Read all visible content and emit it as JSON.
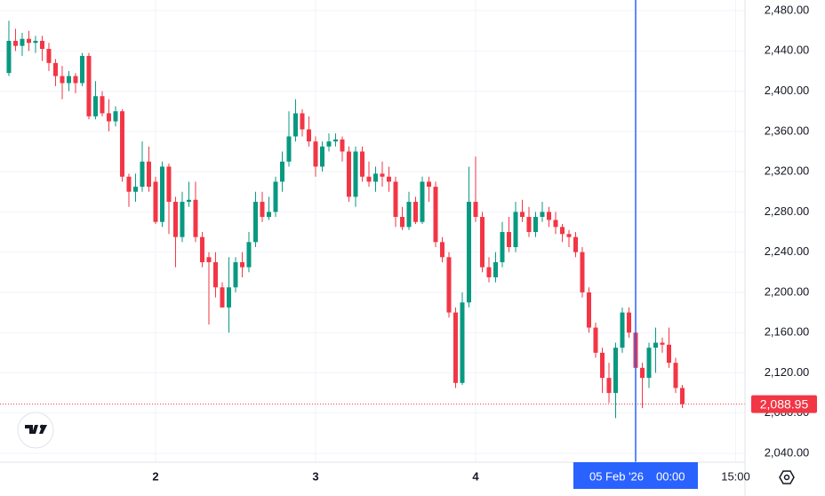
{
  "chart_data": {
    "type": "candlestick",
    "open": [
      2418,
      2450,
      2445,
      2452,
      2448,
      2450,
      2442,
      2428,
      2415,
      2408,
      2415,
      2408,
      2435,
      2375,
      2395,
      2378,
      2370,
      2380,
      2315,
      2300,
      2305,
      2330,
      2310,
      2270,
      2325,
      2290,
      2255,
      2290,
      2292,
      2255,
      2235,
      2230,
      2205,
      2185,
      2205,
      2230,
      2225,
      2250,
      2290,
      2275,
      2280,
      2310,
      2330,
      2355,
      2378,
      2362,
      2350,
      2325,
      2345,
      2350,
      2352,
      2340,
      2295,
      2340,
      2315,
      2310,
      2318,
      2315,
      2310,
      2275,
      2265,
      2290,
      2270,
      2310,
      2305,
      2250,
      2235,
      2180,
      2110,
      2190,
      2290,
      2275,
      2225,
      2215,
      2230,
      2260,
      2245,
      2280,
      2275,
      2260,
      2275,
      2280,
      2272,
      2265,
      2258,
      2255,
      2240,
      2200,
      2165,
      2140,
      2115,
      2100,
      2145,
      2180,
      2160,
      2125,
      2115,
      2145,
      2150,
      2148,
      2130,
      2105
    ],
    "high": [
      2470,
      2462,
      2458,
      2460,
      2455,
      2455,
      2448,
      2432,
      2425,
      2420,
      2418,
      2438,
      2438,
      2410,
      2400,
      2392,
      2385,
      2382,
      2318,
      2318,
      2350,
      2345,
      2315,
      2330,
      2328,
      2295,
      2300,
      2310,
      2310,
      2260,
      2240,
      2240,
      2210,
      2235,
      2235,
      2240,
      2260,
      2300,
      2300,
      2295,
      2315,
      2340,
      2380,
      2392,
      2382,
      2375,
      2355,
      2350,
      2358,
      2358,
      2355,
      2345,
      2345,
      2345,
      2330,
      2325,
      2330,
      2325,
      2315,
      2285,
      2300,
      2295,
      2315,
      2315,
      2310,
      2255,
      2240,
      2185,
      2200,
      2325,
      2335,
      2280,
      2235,
      2240,
      2270,
      2275,
      2290,
      2292,
      2285,
      2280,
      2290,
      2285,
      2280,
      2268,
      2262,
      2260,
      2245,
      2205,
      2170,
      2145,
      2130,
      2150,
      2185,
      2185,
      2170,
      2130,
      2150,
      2165,
      2155,
      2165,
      2135,
      2108
    ],
    "low": [
      2415,
      2440,
      2435,
      2440,
      2438,
      2430,
      2420,
      2405,
      2392,
      2400,
      2398,
      2405,
      2372,
      2372,
      2375,
      2360,
      2365,
      2310,
      2285,
      2290,
      2300,
      2300,
      2268,
      2265,
      2258,
      2225,
      2250,
      2285,
      2250,
      2225,
      2168,
      2195,
      2185,
      2160,
      2200,
      2215,
      2220,
      2245,
      2270,
      2272,
      2275,
      2300,
      2325,
      2350,
      2355,
      2345,
      2315,
      2320,
      2340,
      2345,
      2330,
      2290,
      2285,
      2310,
      2305,
      2300,
      2305,
      2300,
      2265,
      2262,
      2262,
      2268,
      2268,
      2290,
      2245,
      2230,
      2175,
      2105,
      2108,
      2185,
      2270,
      2220,
      2210,
      2210,
      2225,
      2240,
      2240,
      2270,
      2255,
      2255,
      2270,
      2265,
      2258,
      2250,
      2245,
      2235,
      2195,
      2160,
      2135,
      2100,
      2090,
      2075,
      2140,
      2155,
      2110,
      2085,
      2105,
      2120,
      2140,
      2125,
      2100,
      2085
    ],
    "close": [
      2450,
      2445,
      2452,
      2448,
      2450,
      2442,
      2428,
      2415,
      2408,
      2415,
      2408,
      2435,
      2375,
      2395,
      2378,
      2370,
      2380,
      2315,
      2300,
      2305,
      2330,
      2305,
      2270,
      2325,
      2290,
      2255,
      2290,
      2292,
      2255,
      2230,
      2230,
      2205,
      2185,
      2205,
      2230,
      2225,
      2250,
      2290,
      2275,
      2280,
      2310,
      2330,
      2355,
      2378,
      2362,
      2350,
      2325,
      2345,
      2350,
      2352,
      2340,
      2295,
      2340,
      2315,
      2310,
      2318,
      2315,
      2310,
      2275,
      2265,
      2290,
      2270,
      2310,
      2305,
      2250,
      2235,
      2180,
      2110,
      2190,
      2290,
      2275,
      2225,
      2215,
      2230,
      2260,
      2245,
      2280,
      2275,
      2260,
      2275,
      2280,
      2272,
      2265,
      2258,
      2255,
      2240,
      2200,
      2165,
      2140,
      2115,
      2100,
      2145,
      2180,
      2160,
      2125,
      2115,
      2145,
      2150,
      2148,
      2130,
      2105,
      2089
    ],
    "up_color": "#089981",
    "down_color": "#f23645",
    "xlim": [
      -1.33,
      110.4
    ],
    "ylim": [
      2031.2,
      2490.6
    ],
    "xticks": [
      {
        "value": 22,
        "label": "2"
      },
      {
        "value": 46,
        "label": "3"
      },
      {
        "value": 70,
        "label": "4"
      },
      {
        "value": 109,
        "label": "15:00"
      }
    ],
    "yticks": [
      {
        "value": 2040,
        "label": "2,040.00"
      },
      {
        "value": 2080,
        "label": "2,080.00"
      },
      {
        "value": 2120,
        "label": "2,120.00"
      },
      {
        "value": 2160,
        "label": "2,160.00"
      },
      {
        "value": 2200,
        "label": "2,200.00"
      },
      {
        "value": 2240,
        "label": "2,240.00"
      },
      {
        "value": 2280,
        "label": "2,280.00"
      },
      {
        "value": 2320,
        "label": "2,320.00"
      },
      {
        "value": 2360,
        "label": "2,360.00"
      },
      {
        "value": 2400,
        "label": "2,400.00"
      },
      {
        "value": 2440,
        "label": "2,440.00"
      },
      {
        "value": 2480,
        "label": "2,480.00"
      }
    ],
    "grid": true,
    "last_price": {
      "value": 2088.95,
      "label": "2,088.95"
    },
    "crosshair": {
      "value": 94,
      "date_label": "05 Feb '26",
      "time_label": "00:00",
      "color": "#2962ff"
    }
  }
}
